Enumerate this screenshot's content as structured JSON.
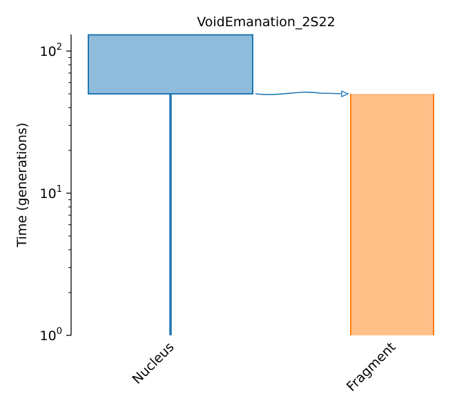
{
  "chart_data": {
    "type": "demography",
    "title": "VoidEmanation_2S22",
    "ylabel": "Time (generations)",
    "xlabel": "",
    "yscale": "log",
    "ylim": [
      1,
      130
    ],
    "y_ticks": [
      {
        "value": 1,
        "base": "10",
        "exp": "0"
      },
      {
        "value": 10,
        "base": "10",
        "exp": "1"
      },
      {
        "value": 100,
        "base": "10",
        "exp": "2"
      }
    ],
    "categories": [
      "Nucleus",
      "Fragment"
    ],
    "populations": [
      {
        "name": "Nucleus",
        "color": "#1f77b4",
        "fill": "#8fbcdb",
        "ancestral_start": 50,
        "ancestral_end": 130,
        "lineage_start": 1,
        "lineage_end": 50
      },
      {
        "name": "Fragment",
        "color": "#ff7f0e",
        "fill": "#ffbf86",
        "start": 1,
        "end": 50
      }
    ],
    "migration": {
      "from": "Nucleus",
      "to": "Fragment",
      "time": 50,
      "color": "#1f77b4"
    },
    "grid": false,
    "legend": "none"
  }
}
